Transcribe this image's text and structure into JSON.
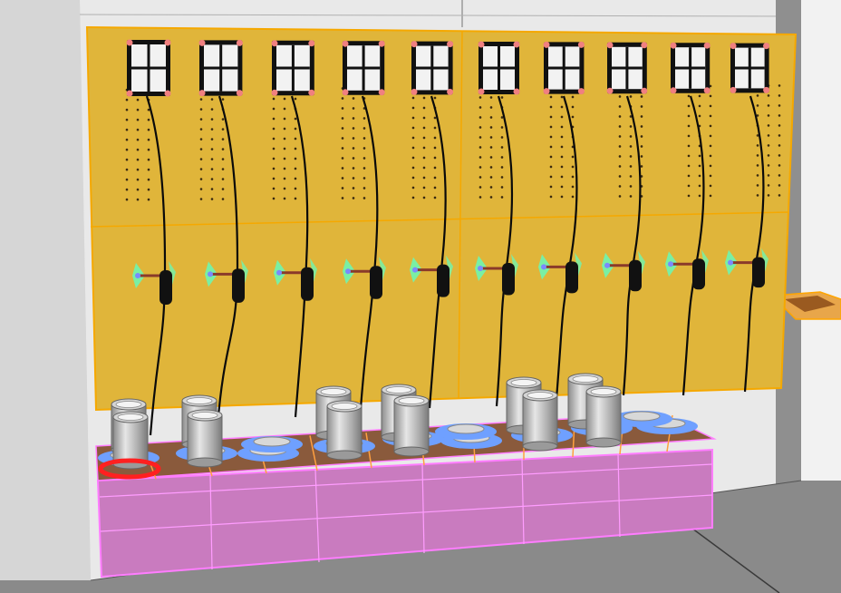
{
  "scene": {
    "panel_color": "#e0b53a",
    "panel_outline": "#f5a800",
    "base_color": "#c97bbf",
    "base_outline": "#ff7dff",
    "tray_color": "#8a5a3c",
    "holder_color": "#6fa0ff",
    "cylinder_color": "#b8b8b8",
    "valve_color": "#6ff5b0",
    "selection_color": "#ff2020",
    "connector_icons": 10,
    "cylinders": 12
  }
}
